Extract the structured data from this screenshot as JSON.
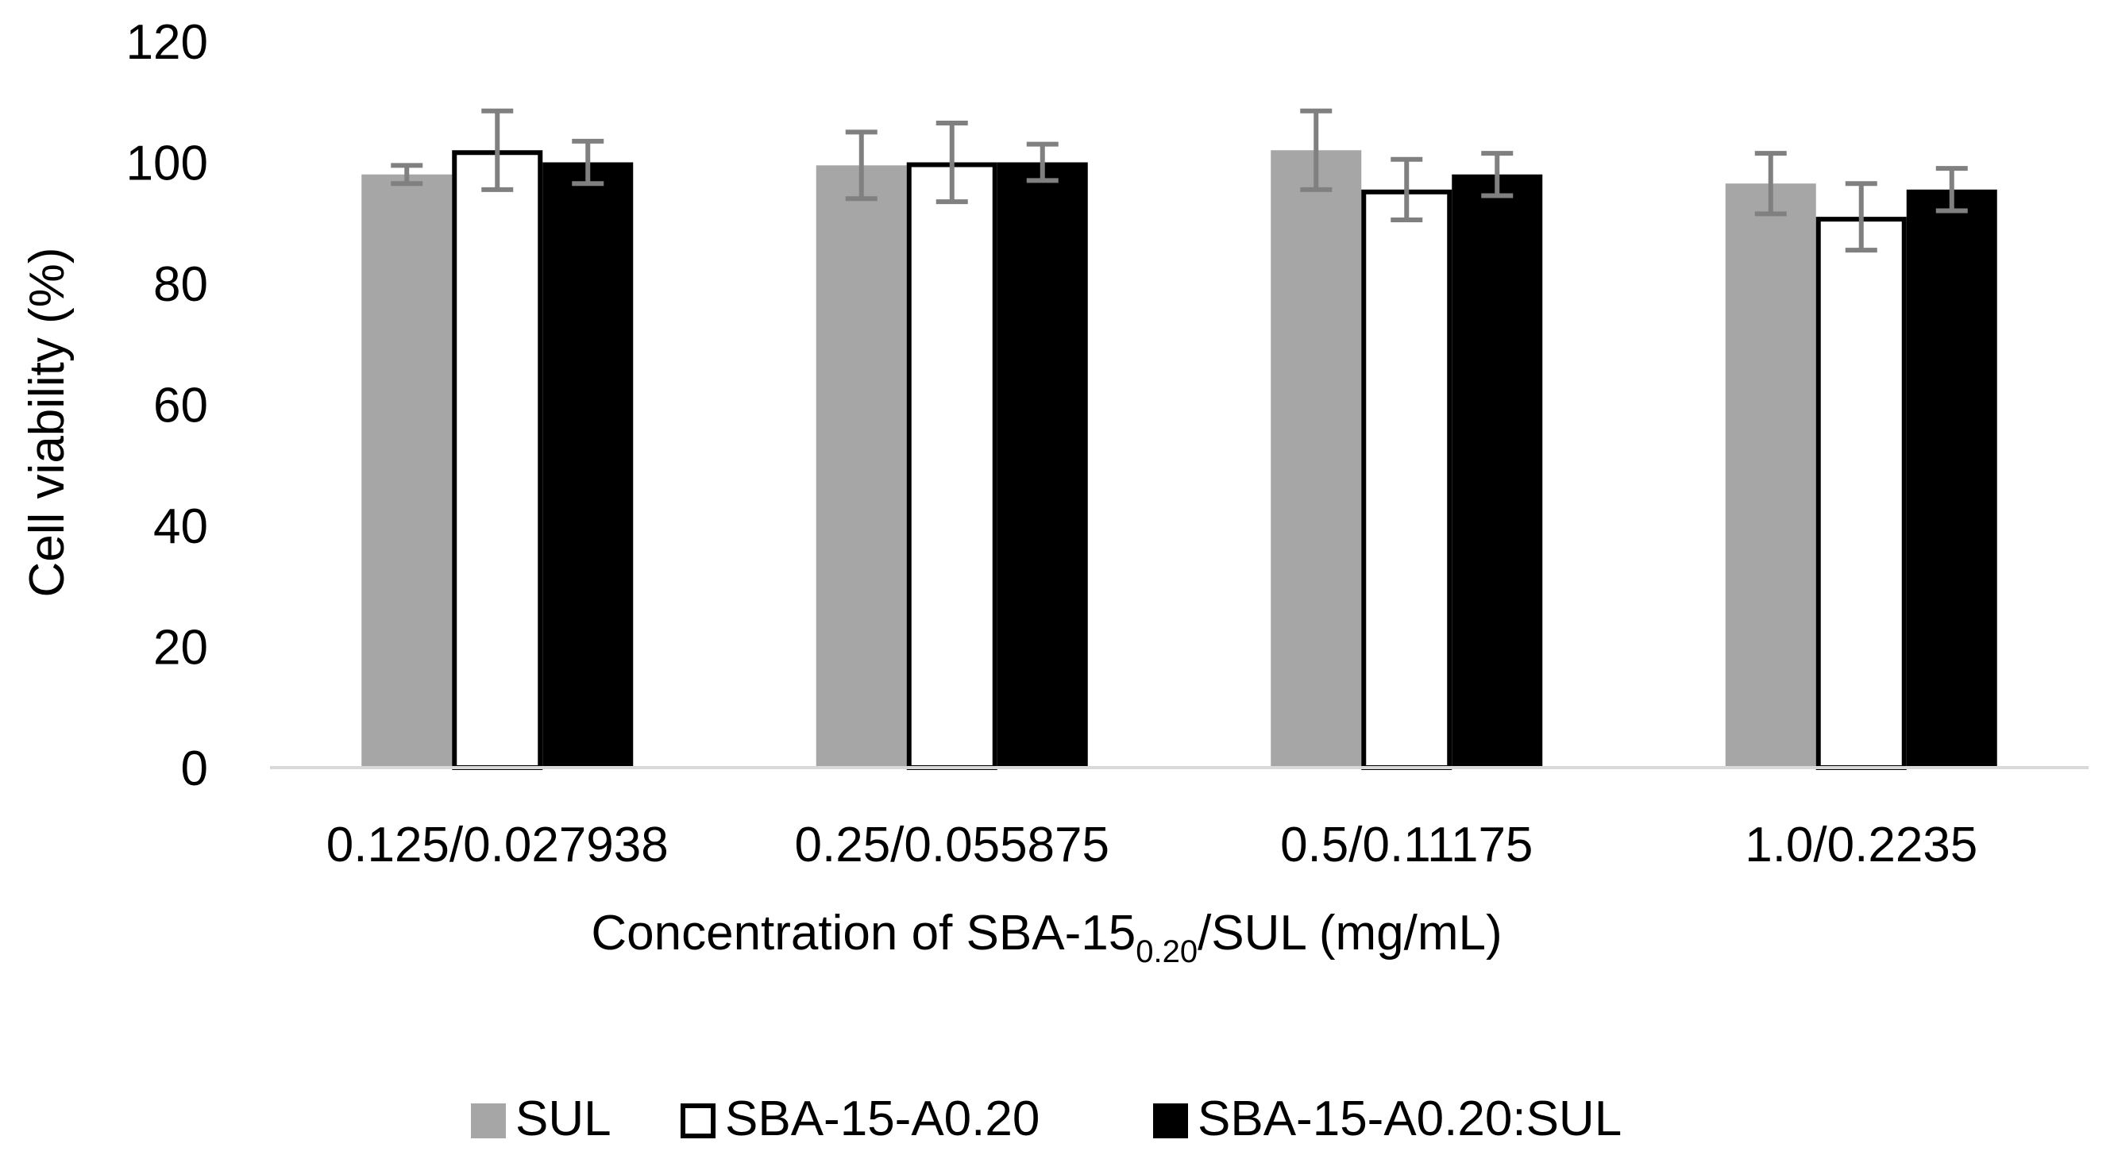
{
  "chart_data": {
    "type": "bar",
    "title": "",
    "xlabel": {
      "prefix": "Concentration of SBA-15",
      "subscript": "0.20",
      "suffix": "/SUL (mg/mL)"
    },
    "ylabel": "Cell viability (%)",
    "ylim": [
      0,
      120
    ],
    "yticks": [
      0,
      20,
      40,
      60,
      80,
      100,
      120
    ],
    "grid": false,
    "legend_position": "bottom",
    "categories": [
      "0.125/0.027938",
      "0.25/0.055875",
      "0.5/0.11175",
      "1.0/0.2235"
    ],
    "series": [
      {
        "name": "SUL",
        "fill": "#a6a6a6",
        "stroke": "none",
        "values": [
          98,
          99.5,
          102,
          96.5
        ],
        "errors": [
          1.5,
          5.5,
          6.5,
          5
        ]
      },
      {
        "name": "SBA-15-A0.20",
        "fill": "#ffffff",
        "stroke": "#000000",
        "values": [
          102,
          100,
          95.5,
          91
        ],
        "errors": [
          6.5,
          6.5,
          5,
          5.5
        ]
      },
      {
        "name": "SBA-15-A0.20:SUL",
        "fill": "#000000",
        "stroke": "none",
        "values": [
          100,
          100,
          98,
          95.5
        ],
        "errors": [
          3.5,
          3,
          3.5,
          3.5
        ]
      }
    ],
    "error_bar_color": "#808080",
    "axis_color": "#d9d9d9"
  }
}
